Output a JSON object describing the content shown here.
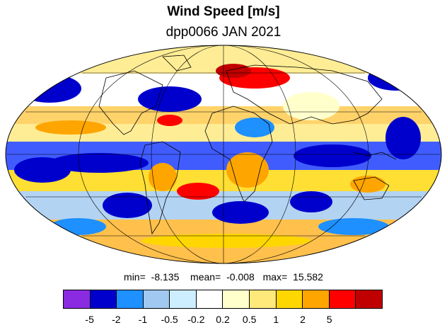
{
  "title": "Wind Speed [m/s]",
  "subtitle": "dpp0066 JAN 2021",
  "stats": {
    "min_label": "min=",
    "min_value": "-8.135",
    "mean_label": "mean=",
    "mean_value": "-0.008",
    "max_label": "max=",
    "max_value": "15.582"
  },
  "colorbar": {
    "colors": [
      "#8a2be2",
      "#0000cd",
      "#1e90ff",
      "#a0c8f0",
      "#cdeeff",
      "#ffffff",
      "#ffffcc",
      "#ffe97a",
      "#ffd700",
      "#ffa500",
      "#ff0000",
      "#c00000"
    ],
    "tick_labels": [
      "-5",
      "-2",
      "-1",
      "-0.5",
      "-0.2",
      "0.2",
      "0.5",
      "1",
      "2",
      "5"
    ]
  },
  "map": {
    "projection": "mollweide",
    "graticule": true,
    "coastlines": true
  }
}
